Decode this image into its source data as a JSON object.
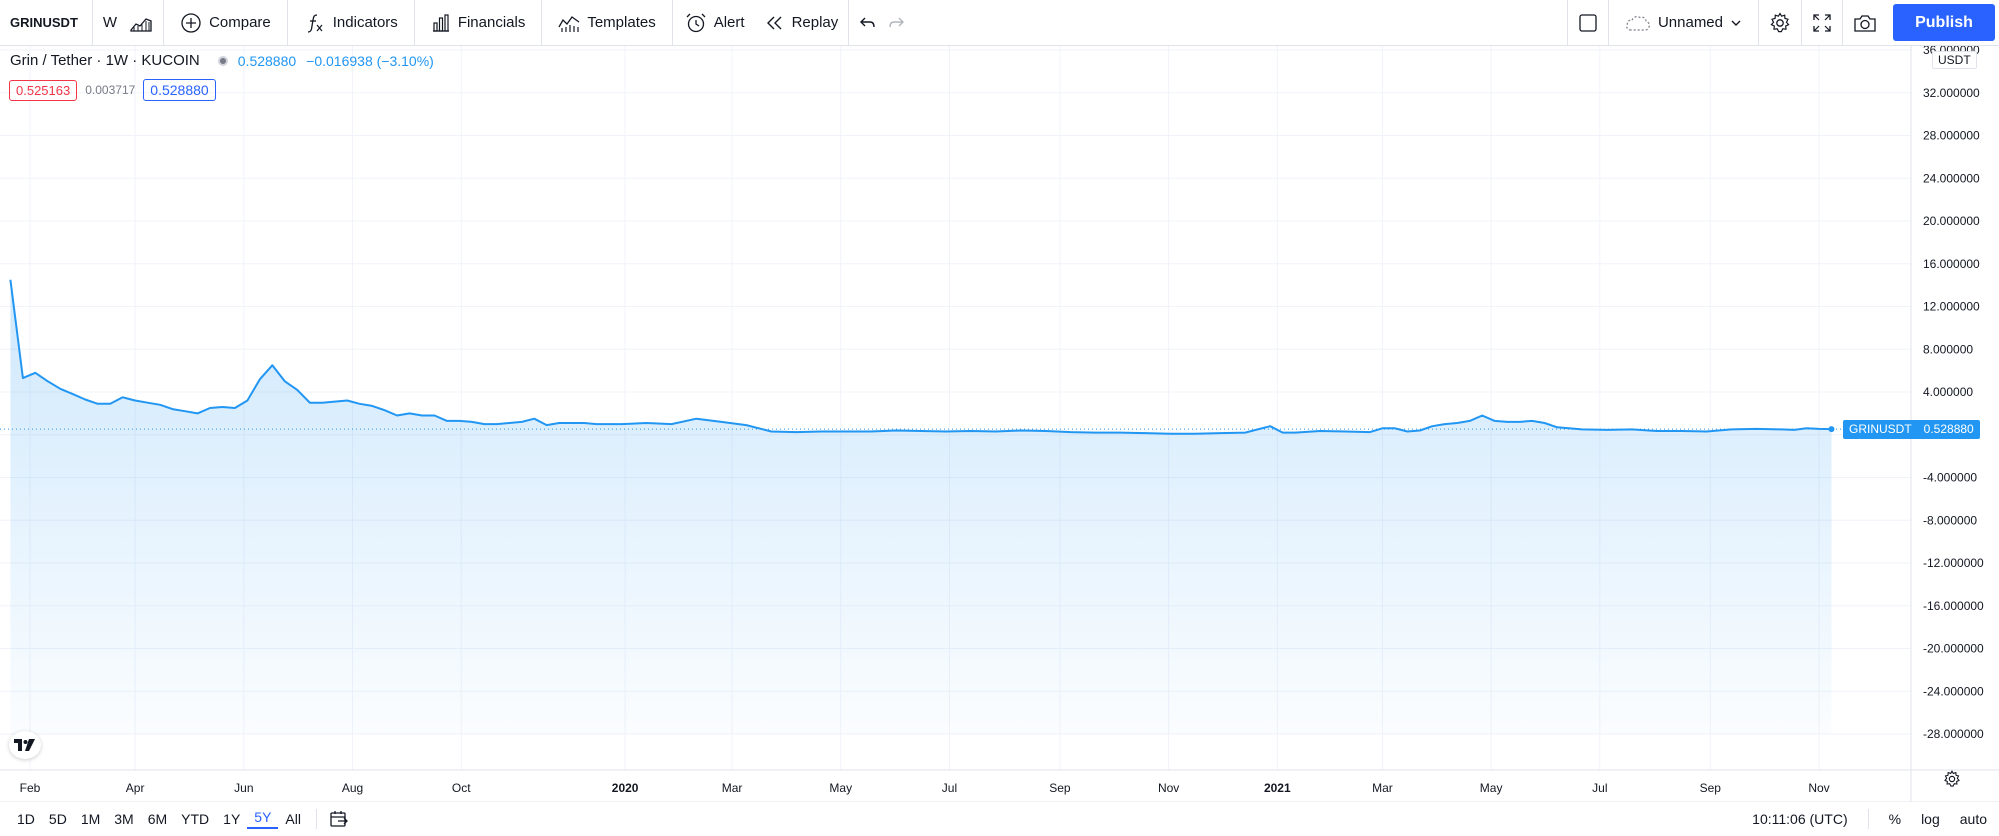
{
  "toolbar": {
    "symbol": "GRINUSDT",
    "interval": "W",
    "compare": "Compare",
    "indicators": "Indicators",
    "financials": "Financials",
    "templates": "Templates",
    "alert": "Alert",
    "replay": "Replay",
    "layout_name": "Unnamed",
    "publish": "Publish"
  },
  "legend": {
    "title": "Grin / Tether · 1W · KUCOIN",
    "last": "0.528880",
    "change": "−0.016938 (−3.10%)",
    "bid": "0.525163",
    "spread": "0.003717",
    "ask": "0.528880"
  },
  "price_scale": {
    "currency": "USDT",
    "tag_symbol": "GRINUSDT",
    "tag_value": "0.528880"
  },
  "bottom": {
    "ranges": [
      "1D",
      "5D",
      "1M",
      "3M",
      "6M",
      "YTD",
      "1Y",
      "5Y",
      "All"
    ],
    "active_range": "5Y",
    "time": "10:11:06 (UTC)",
    "percent": "%",
    "log": "log",
    "auto": "auto"
  },
  "colors": {
    "line": "#2196f3",
    "accent": "#2962ff",
    "down": "#f23645"
  },
  "chart_data": {
    "type": "area",
    "title": "Grin / Tether · 1W · KUCOIN",
    "xlabel": "",
    "ylabel": "",
    "ylim": [
      -30,
      36
    ],
    "y_ticks": [
      36,
      32,
      28,
      24,
      20,
      16,
      12,
      8,
      4,
      0,
      -4,
      -8,
      -12,
      -16,
      -20,
      -24,
      -28
    ],
    "y_tick_labels": [
      "36.000000",
      "32.000000",
      "28.000000",
      "24.000000",
      "20.000000",
      "16.000000",
      "12.000000",
      "8.000000",
      "4.000000",
      "0.000000",
      "-4.000000",
      "-8.000000",
      "-12.000000",
      "-16.000000",
      "-20.000000",
      "-24.000000",
      "-28.000000"
    ],
    "x_ticks": [
      {
        "label": "Feb",
        "date": "2019-02-01"
      },
      {
        "label": "Apr",
        "date": "2019-04-01"
      },
      {
        "label": "Jun",
        "date": "2019-06-01"
      },
      {
        "label": "Aug",
        "date": "2019-08-01"
      },
      {
        "label": "Oct",
        "date": "2019-10-01"
      },
      {
        "label": "2020",
        "date": "2020-01-01"
      },
      {
        "label": "Mar",
        "date": "2020-03-01"
      },
      {
        "label": "May",
        "date": "2020-05-01"
      },
      {
        "label": "Jul",
        "date": "2020-07-01"
      },
      {
        "label": "Sep",
        "date": "2020-09-01"
      },
      {
        "label": "Nov",
        "date": "2020-11-01"
      },
      {
        "label": "2021",
        "date": "2021-01-01"
      },
      {
        "label": "Mar",
        "date": "2021-03-01"
      },
      {
        "label": "May",
        "date": "2021-05-01"
      },
      {
        "label": "Jul",
        "date": "2021-07-01"
      },
      {
        "label": "Sep",
        "date": "2021-09-01"
      },
      {
        "label": "Nov",
        "date": "2021-11-01"
      }
    ],
    "grid": true,
    "series": [
      {
        "values": [
          [
            "2019-01-21",
            14.5
          ],
          [
            "2019-01-28",
            5.3
          ],
          [
            "2019-02-04",
            5.8
          ],
          [
            "2019-02-11",
            5.0
          ],
          [
            "2019-02-18",
            4.3
          ],
          [
            "2019-02-25",
            3.8
          ],
          [
            "2019-03-04",
            3.3
          ],
          [
            "2019-03-11",
            2.9
          ],
          [
            "2019-03-18",
            2.9
          ],
          [
            "2019-03-25",
            3.5
          ],
          [
            "2019-04-01",
            3.2
          ],
          [
            "2019-04-08",
            3.0
          ],
          [
            "2019-04-15",
            2.8
          ],
          [
            "2019-04-22",
            2.4
          ],
          [
            "2019-04-29",
            2.2
          ],
          [
            "2019-05-06",
            2.0
          ],
          [
            "2019-05-13",
            2.5
          ],
          [
            "2019-05-20",
            2.6
          ],
          [
            "2019-05-27",
            2.5
          ],
          [
            "2019-06-03",
            3.2
          ],
          [
            "2019-06-10",
            5.2
          ],
          [
            "2019-06-17",
            6.5
          ],
          [
            "2019-06-24",
            5.0
          ],
          [
            "2019-07-01",
            4.2
          ],
          [
            "2019-07-08",
            3.0
          ],
          [
            "2019-07-15",
            3.0
          ],
          [
            "2019-07-22",
            3.1
          ],
          [
            "2019-07-29",
            3.2
          ],
          [
            "2019-08-05",
            2.9
          ],
          [
            "2019-08-12",
            2.7
          ],
          [
            "2019-08-19",
            2.3
          ],
          [
            "2019-08-26",
            1.8
          ],
          [
            "2019-09-02",
            2.0
          ],
          [
            "2019-09-09",
            1.8
          ],
          [
            "2019-09-16",
            1.8
          ],
          [
            "2019-09-23",
            1.3
          ],
          [
            "2019-09-30",
            1.3
          ],
          [
            "2019-10-07",
            1.2
          ],
          [
            "2019-10-14",
            1.0
          ],
          [
            "2019-10-21",
            1.0
          ],
          [
            "2019-10-28",
            1.1
          ],
          [
            "2019-11-04",
            1.2
          ],
          [
            "2019-11-11",
            1.5
          ],
          [
            "2019-11-18",
            0.9
          ],
          [
            "2019-11-25",
            1.1
          ],
          [
            "2019-12-02",
            1.1
          ],
          [
            "2019-12-09",
            1.1
          ],
          [
            "2019-12-16",
            1.0
          ],
          [
            "2019-12-30",
            1.0
          ],
          [
            "2020-01-13",
            1.1
          ],
          [
            "2020-01-27",
            1.0
          ],
          [
            "2020-02-10",
            1.5
          ],
          [
            "2020-02-24",
            1.2
          ],
          [
            "2020-03-09",
            0.9
          ],
          [
            "2020-03-23",
            0.3
          ],
          [
            "2020-04-06",
            0.25
          ],
          [
            "2020-04-20",
            0.3
          ],
          [
            "2020-05-04",
            0.3
          ],
          [
            "2020-05-18",
            0.3
          ],
          [
            "2020-06-01",
            0.4
          ],
          [
            "2020-06-15",
            0.35
          ],
          [
            "2020-06-29",
            0.3
          ],
          [
            "2020-07-13",
            0.35
          ],
          [
            "2020-07-27",
            0.3
          ],
          [
            "2020-08-10",
            0.4
          ],
          [
            "2020-08-24",
            0.35
          ],
          [
            "2020-09-07",
            0.25
          ],
          [
            "2020-09-21",
            0.2
          ],
          [
            "2020-10-05",
            0.2
          ],
          [
            "2020-10-19",
            0.15
          ],
          [
            "2020-11-02",
            0.1
          ],
          [
            "2020-11-16",
            0.1
          ],
          [
            "2020-11-30",
            0.15
          ],
          [
            "2020-12-14",
            0.2
          ],
          [
            "2020-12-28",
            0.8
          ],
          [
            "2021-01-04",
            0.2
          ],
          [
            "2021-01-11",
            0.2
          ],
          [
            "2021-01-25",
            0.35
          ],
          [
            "2021-02-08",
            0.3
          ],
          [
            "2021-02-22",
            0.25
          ],
          [
            "2021-03-01",
            0.6
          ],
          [
            "2021-03-08",
            0.6
          ],
          [
            "2021-03-15",
            0.3
          ],
          [
            "2021-03-22",
            0.4
          ],
          [
            "2021-03-29",
            0.8
          ],
          [
            "2021-04-05",
            1.0
          ],
          [
            "2021-04-12",
            1.1
          ],
          [
            "2021-04-19",
            1.3
          ],
          [
            "2021-04-26",
            1.8
          ],
          [
            "2021-05-03",
            1.3
          ],
          [
            "2021-05-10",
            1.2
          ],
          [
            "2021-05-17",
            1.2
          ],
          [
            "2021-05-24",
            1.3
          ],
          [
            "2021-05-31",
            1.1
          ],
          [
            "2021-06-07",
            0.7
          ],
          [
            "2021-06-21",
            0.5
          ],
          [
            "2021-07-05",
            0.45
          ],
          [
            "2021-07-19",
            0.5
          ],
          [
            "2021-08-02",
            0.35
          ],
          [
            "2021-08-16",
            0.35
          ],
          [
            "2021-08-30",
            0.3
          ],
          [
            "2021-09-13",
            0.5
          ],
          [
            "2021-09-27",
            0.55
          ],
          [
            "2021-10-11",
            0.5
          ],
          [
            "2021-10-18",
            0.45
          ],
          [
            "2021-10-25",
            0.6
          ],
          [
            "2021-11-01",
            0.55
          ],
          [
            "2021-11-08",
            0.529
          ]
        ]
      }
    ]
  }
}
